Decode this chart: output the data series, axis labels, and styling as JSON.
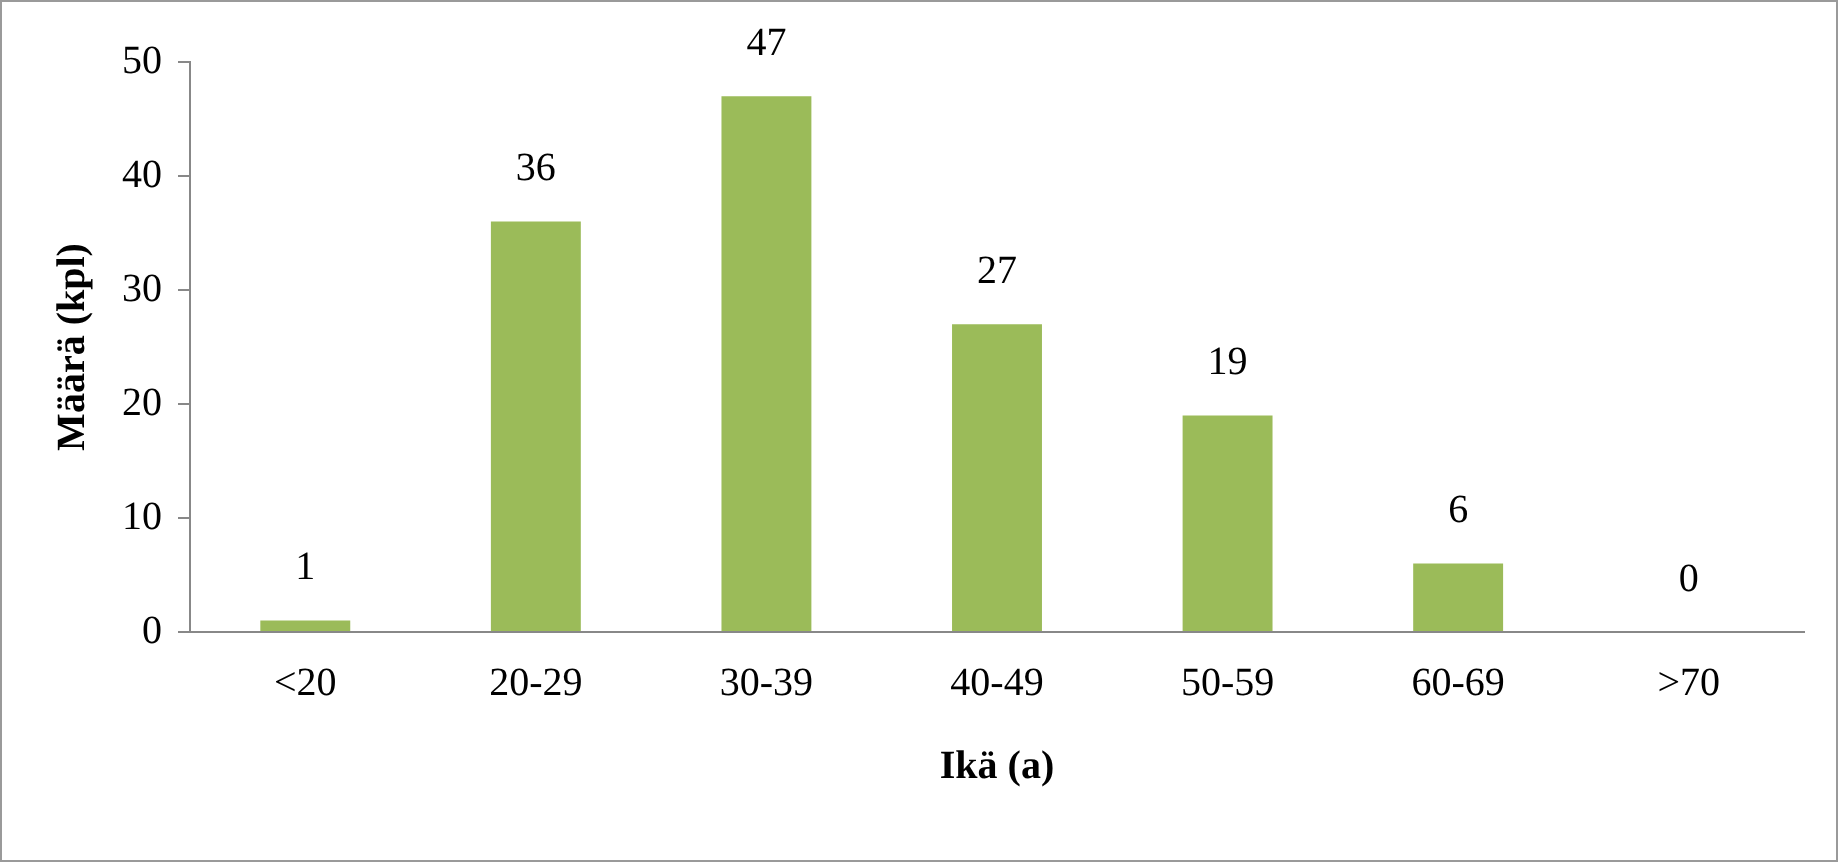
{
  "chart_data": {
    "type": "bar",
    "xlabel": "Ikä (a)",
    "ylabel": "Määrä (kpl)",
    "categories": [
      "<20",
      "20-29",
      "30-39",
      "40-49",
      "50-59",
      "60-69",
      ">70"
    ],
    "values": [
      1,
      36,
      47,
      27,
      19,
      6,
      0
    ],
    "color": "#9bbb59",
    "ylim": [
      0,
      50
    ],
    "yticks": [
      0,
      10,
      20,
      30,
      40,
      50
    ],
    "grid": false,
    "legend": false,
    "data_labels": true
  }
}
